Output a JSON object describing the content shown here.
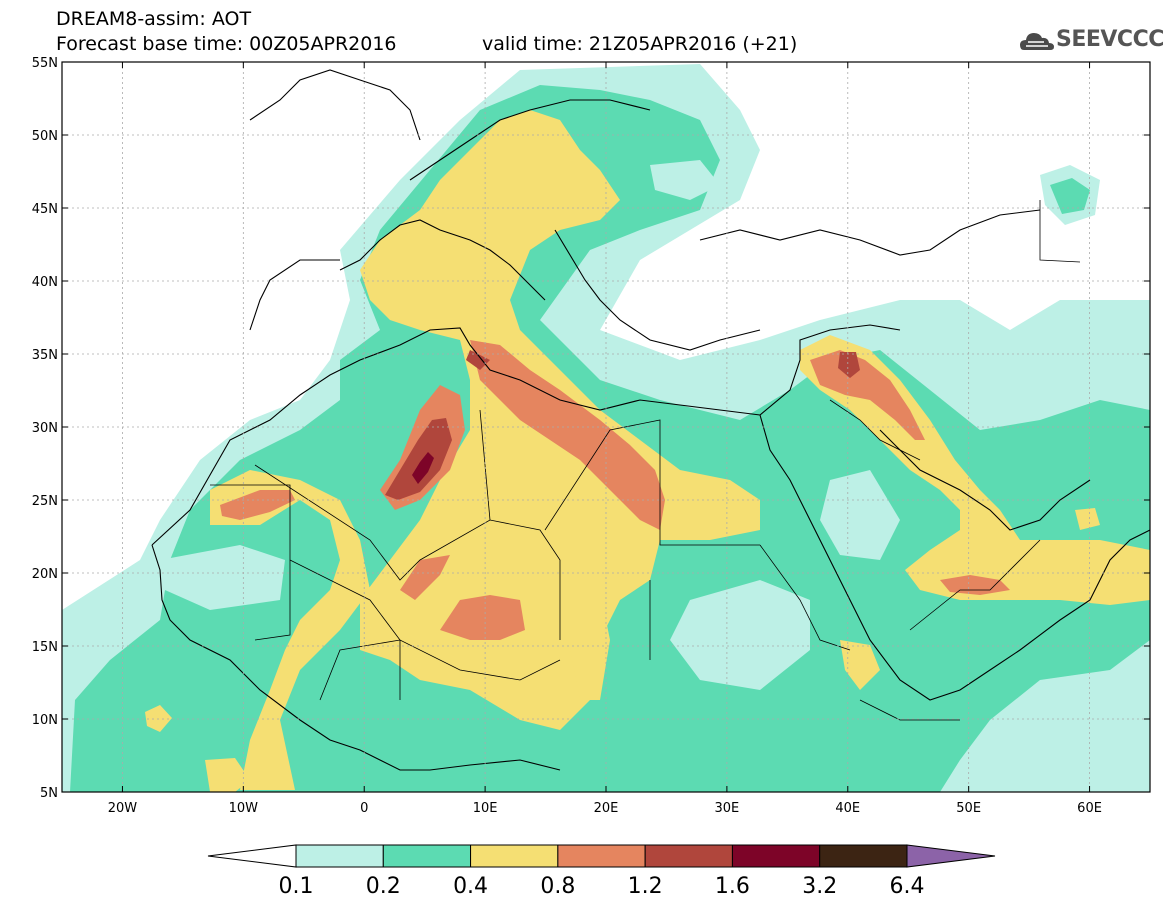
{
  "header": {
    "title": "DREAM8-assim: AOT",
    "base_time": "Forecast base time: 00Z05APR2016",
    "valid_time": "valid time: 21Z05APR2016 (+21)"
  },
  "logo": {
    "text": "SEEVCCC"
  },
  "map": {
    "lon_labels": [
      "20W",
      "10W",
      "0",
      "10E",
      "20E",
      "30E",
      "40E",
      "50E",
      "60E"
    ],
    "lon_values": [
      -20,
      -10,
      0,
      10,
      20,
      30,
      40,
      50,
      60
    ],
    "lat_labels": [
      "55N",
      "50N",
      "45N",
      "40N",
      "35N",
      "30N",
      "25N",
      "20N",
      "15N",
      "10N",
      "5N"
    ],
    "lat_values": [
      55,
      50,
      45,
      40,
      35,
      30,
      25,
      20,
      15,
      10,
      5
    ],
    "lon_range": [
      -25,
      65
    ],
    "lat_range": [
      5,
      55
    ],
    "gridlines": true
  },
  "colorbar": {
    "labels": [
      "0.1",
      "0.2",
      "0.4",
      "0.8",
      "1.2",
      "1.6",
      "3.2",
      "6.4"
    ],
    "colors": [
      "#ffffff",
      "#bdf0e6",
      "#5cdbb2",
      "#f5df73",
      "#e5855f",
      "#b0463c",
      "#7d0428",
      "#3c2413",
      "#8c63a8"
    ]
  }
}
